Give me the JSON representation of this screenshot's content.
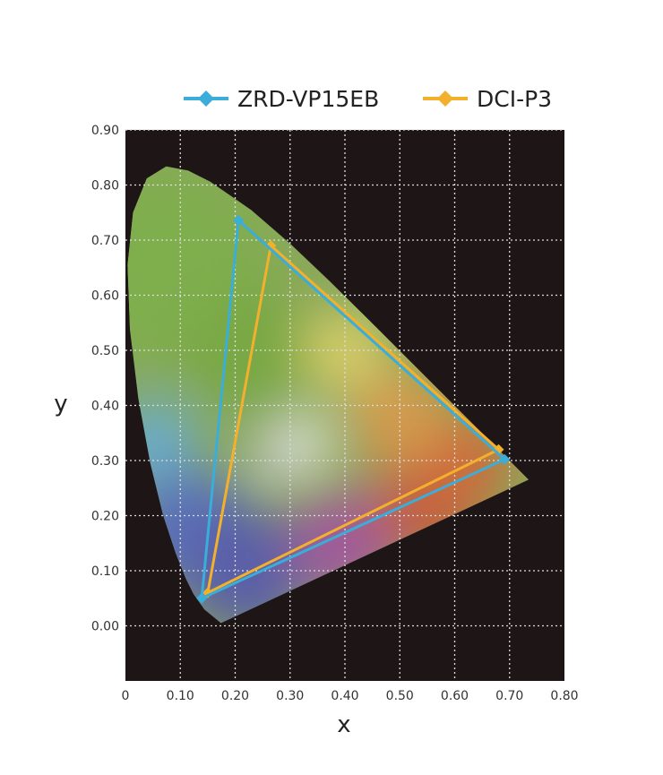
{
  "chart_data": {
    "type": "scatter",
    "title": "",
    "xlabel": "x",
    "ylabel": "y",
    "xlim": [
      0,
      0.8
    ],
    "ylim": [
      -0.1,
      0.9
    ],
    "xticks": [
      "0",
      "0.10",
      "0.20",
      "0.30",
      "0.40",
      "0.50",
      "0.60",
      "0.70",
      "0.80"
    ],
    "yticks": [
      "0.90",
      "0.80",
      "0.70",
      "0.60",
      "0.50",
      "0.40",
      "0.30",
      "0.20",
      "0.10",
      "0.00"
    ],
    "grid": true,
    "legend_placement": "top-right",
    "background_color": "#1e1616",
    "series": [
      {
        "name": "ZRD-VP15EB",
        "color": "#3aaed8",
        "marker": "diamond",
        "points": [
          {
            "x": 0.206,
            "y": 0.736
          },
          {
            "x": 0.691,
            "y": 0.302
          },
          {
            "x": 0.139,
            "y": 0.05
          }
        ]
      },
      {
        "name": "DCI-P3",
        "color": "#f2b02c",
        "marker": "diamond",
        "points": [
          {
            "x": 0.265,
            "y": 0.69
          },
          {
            "x": 0.68,
            "y": 0.32
          },
          {
            "x": 0.15,
            "y": 0.06
          }
        ]
      }
    ]
  }
}
